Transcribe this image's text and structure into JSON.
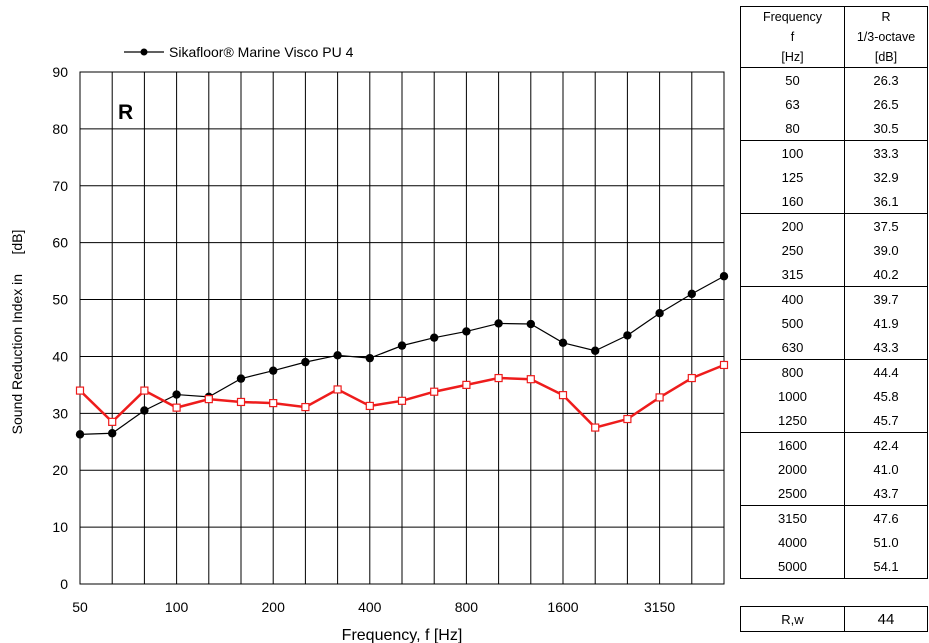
{
  "chart_data": {
    "type": "line",
    "xlabel": "Frequency,  f [Hz]",
    "ylabel": "Sound Reduction Index in     [dB]",
    "panel_label": "R",
    "ylim": [
      0,
      90
    ],
    "y_ticks": [
      "0",
      "10",
      "20",
      "30",
      "40",
      "50",
      "60",
      "70",
      "80",
      "90"
    ],
    "x_tick_labels": [
      "50",
      "100",
      "200",
      "400",
      "800",
      "1600",
      "3150"
    ],
    "x_tick_positions": [
      0,
      3,
      6,
      9,
      12,
      15,
      18
    ],
    "categories": [
      "50",
      "63",
      "80",
      "100",
      "125",
      "160",
      "200",
      "250",
      "315",
      "400",
      "500",
      "630",
      "800",
      "1000",
      "1250",
      "1600",
      "2000",
      "2500",
      "3150",
      "4000",
      "5000"
    ],
    "grid": true,
    "legend": "top-left",
    "series": [
      {
        "name": "Sikafloor® Marine Visco PU 4",
        "color": "#000000",
        "marker": "circle",
        "values": [
          26.3,
          26.5,
          30.5,
          33.3,
          32.9,
          36.1,
          37.5,
          39.0,
          40.2,
          39.7,
          41.9,
          43.3,
          44.4,
          45.8,
          45.7,
          42.4,
          41.0,
          43.7,
          47.6,
          51.0,
          54.1
        ]
      },
      {
        "name": "",
        "color": "#ee1c1c",
        "marker": "square",
        "values": [
          34.0,
          28.5,
          34.0,
          31.0,
          32.5,
          32.0,
          31.8,
          31.1,
          34.2,
          31.3,
          32.2,
          33.8,
          35.0,
          36.2,
          36.0,
          33.2,
          27.5,
          29.0,
          32.8,
          36.2,
          38.5
        ]
      }
    ]
  },
  "table": {
    "header": [
      [
        "Frequency",
        "R"
      ],
      [
        "f",
        "1/3-octave"
      ],
      [
        "[Hz]",
        "[dB]"
      ]
    ],
    "rows": [
      [
        "50",
        "26.3"
      ],
      [
        "63",
        "26.5"
      ],
      [
        "80",
        "30.5"
      ],
      [
        "100",
        "33.3"
      ],
      [
        "125",
        "32.9"
      ],
      [
        "160",
        "36.1"
      ],
      [
        "200",
        "37.5"
      ],
      [
        "250",
        "39.0"
      ],
      [
        "315",
        "40.2"
      ],
      [
        "400",
        "39.7"
      ],
      [
        "500",
        "41.9"
      ],
      [
        "630",
        "43.3"
      ],
      [
        "800",
        "44.4"
      ],
      [
        "1000",
        "45.8"
      ],
      [
        "1250",
        "45.7"
      ],
      [
        "1600",
        "42.4"
      ],
      [
        "2000",
        "41.0"
      ],
      [
        "2500",
        "43.7"
      ],
      [
        "3150",
        "47.6"
      ],
      [
        "4000",
        "51.0"
      ],
      [
        "5000",
        "54.1"
      ]
    ],
    "rw_label": "R,w",
    "rw_value": "44"
  }
}
